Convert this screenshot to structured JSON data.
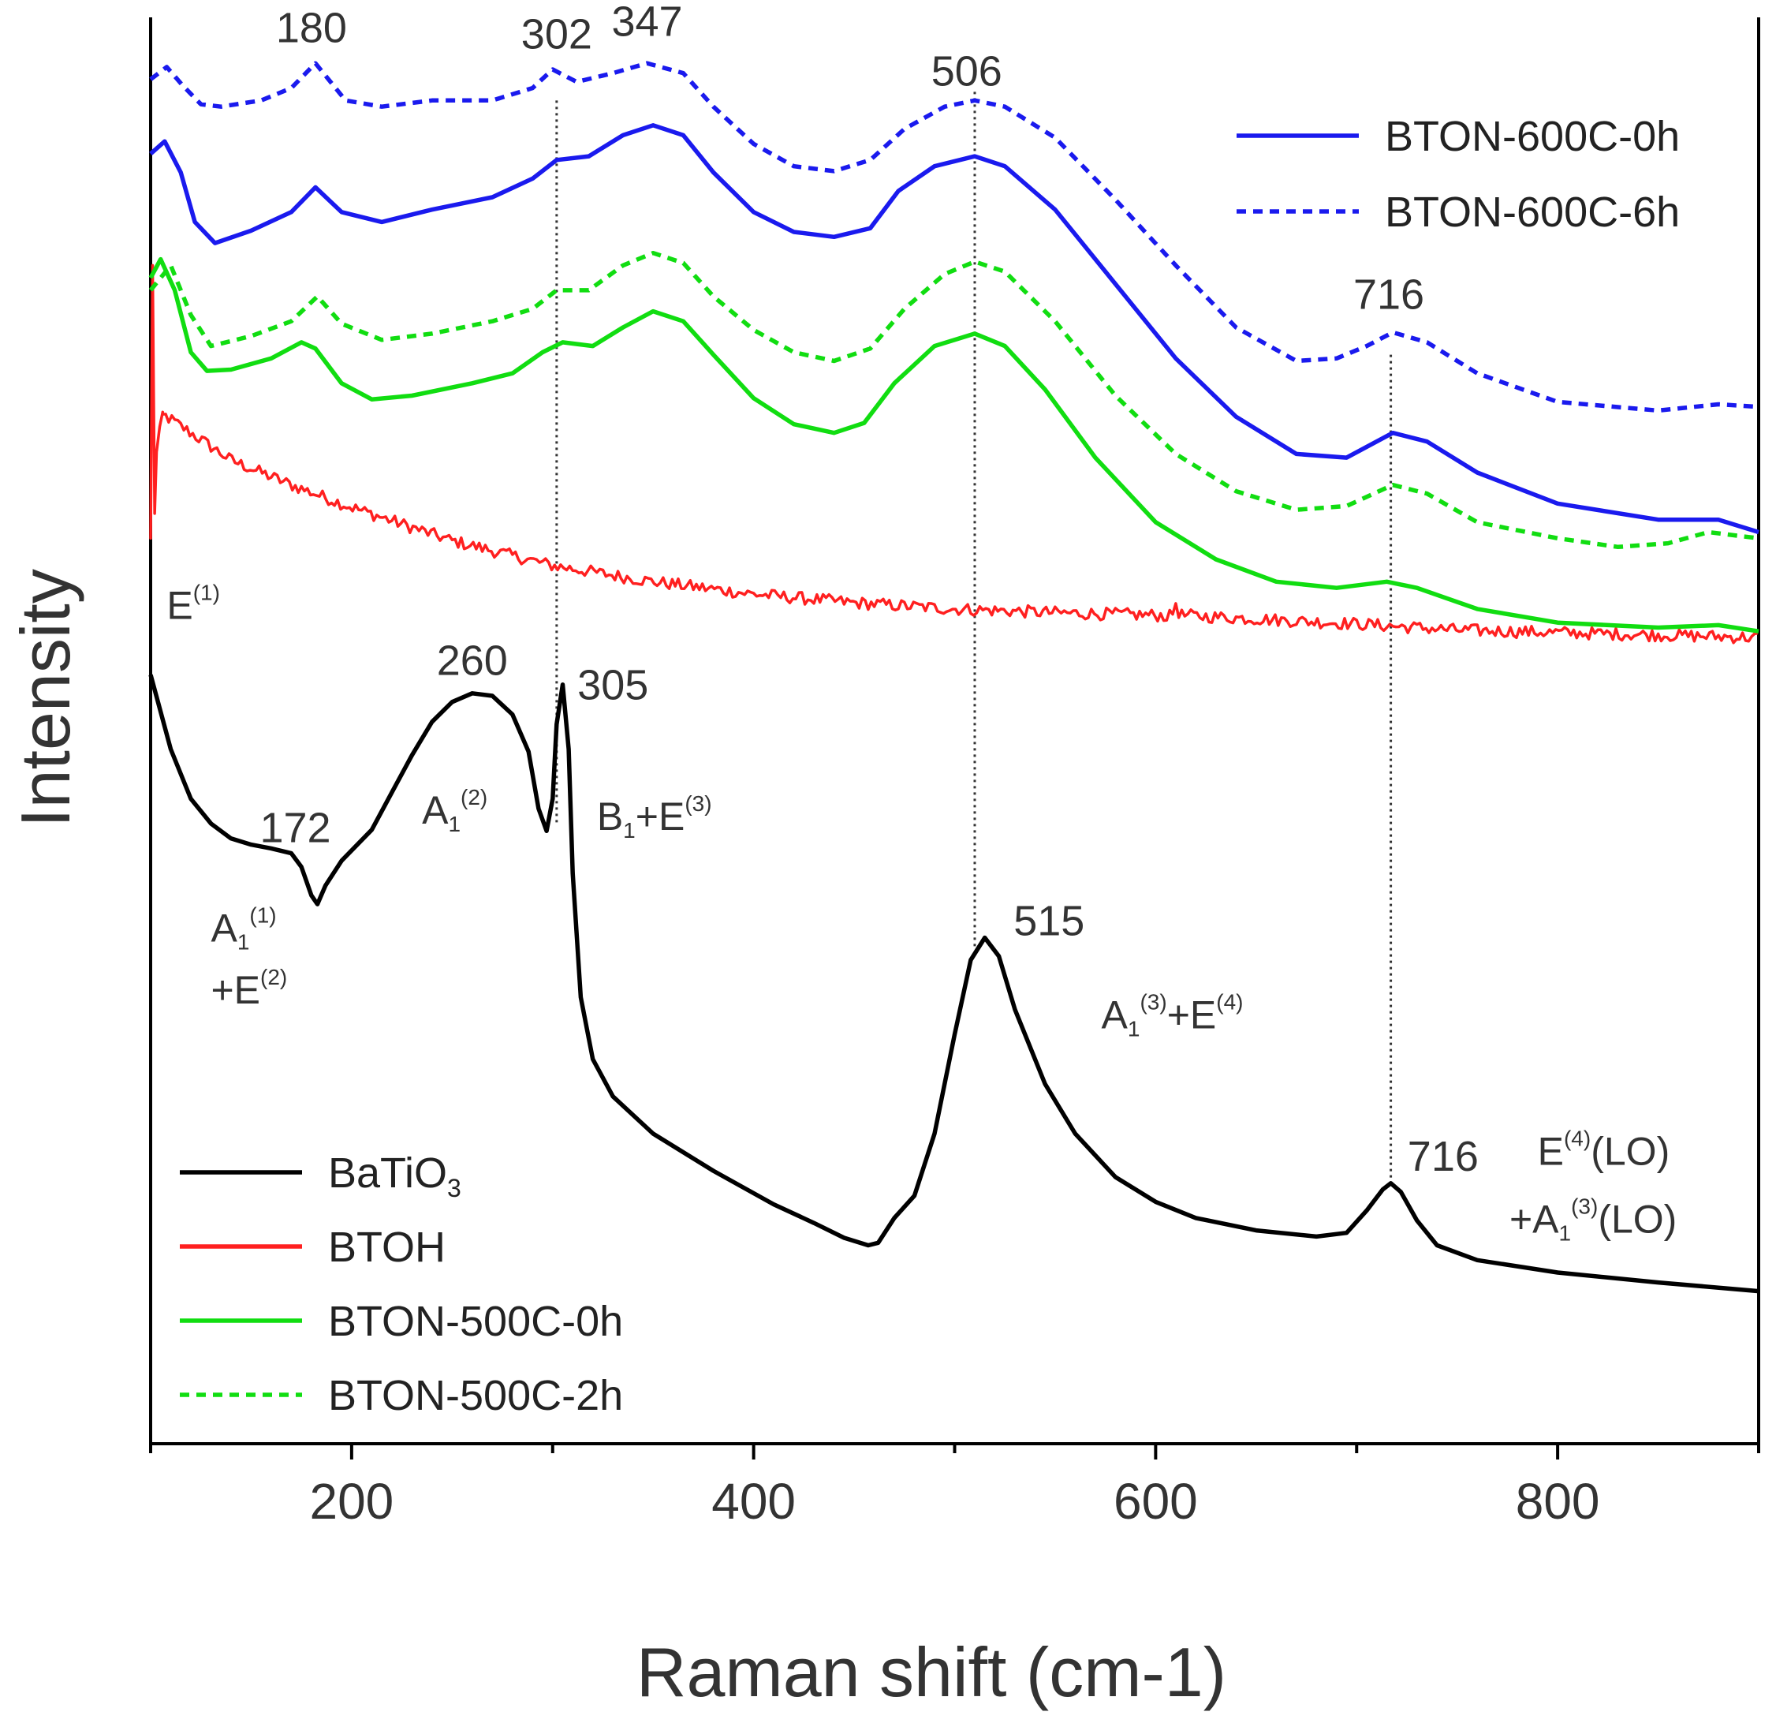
{
  "chart_data": {
    "type": "line",
    "xlabel": "Raman shift (cm-1)",
    "ylabel": "Intensity",
    "xlim": [
      100,
      900
    ],
    "ylim": [
      0,
      115
    ],
    "xticks": [
      200,
      400,
      600,
      800
    ],
    "grid": false,
    "legends": [
      {
        "placement": "top-right",
        "entries": [
          "BTON-600C-0h",
          "BTON-600C-6h"
        ]
      },
      {
        "placement": "bottom-left",
        "entries": [
          "BaTiO3",
          "BTOH",
          "BTON-500C-0h",
          "BTON-500C-2h"
        ]
      }
    ],
    "series": [
      {
        "name": "BaTiO3",
        "color": "#000000",
        "dash": "solid",
        "points": [
          [
            100,
            62
          ],
          [
            110,
            56
          ],
          [
            120,
            52
          ],
          [
            130,
            50
          ],
          [
            140,
            48.8
          ],
          [
            150,
            48.3
          ],
          [
            160,
            48.0
          ],
          [
            170,
            47.6
          ],
          [
            175,
            46.5
          ],
          [
            180,
            44.2
          ],
          [
            183,
            43.5
          ],
          [
            187,
            45
          ],
          [
            195,
            47
          ],
          [
            210,
            49.5
          ],
          [
            220,
            52.5
          ],
          [
            230,
            55.5
          ],
          [
            240,
            58.2
          ],
          [
            250,
            59.8
          ],
          [
            260,
            60.5
          ],
          [
            270,
            60.3
          ],
          [
            280,
            58.8
          ],
          [
            288,
            55.8
          ],
          [
            293,
            51.2
          ],
          [
            297,
            49.4
          ],
          [
            300,
            52
          ],
          [
            302,
            58
          ],
          [
            305,
            61.2
          ],
          [
            308,
            56
          ],
          [
            310,
            46
          ],
          [
            314,
            36
          ],
          [
            320,
            31
          ],
          [
            330,
            28
          ],
          [
            350,
            25
          ],
          [
            380,
            22
          ],
          [
            410,
            19.3
          ],
          [
            430,
            17.8
          ],
          [
            445,
            16.6
          ],
          [
            457,
            16.0
          ],
          [
            462,
            16.2
          ],
          [
            470,
            18.2
          ],
          [
            480,
            20
          ],
          [
            490,
            25
          ],
          [
            500,
            33
          ],
          [
            508,
            39
          ],
          [
            515,
            40.8
          ],
          [
            522,
            39.3
          ],
          [
            530,
            35
          ],
          [
            545,
            29
          ],
          [
            560,
            25
          ],
          [
            580,
            21.5
          ],
          [
            600,
            19.5
          ],
          [
            620,
            18.2
          ],
          [
            650,
            17.2
          ],
          [
            680,
            16.7
          ],
          [
            695,
            17.0
          ],
          [
            705,
            18.8
          ],
          [
            713,
            20.5
          ],
          [
            717,
            21.0
          ],
          [
            722,
            20.3
          ],
          [
            730,
            18.0
          ],
          [
            740,
            16.0
          ],
          [
            760,
            14.8
          ],
          [
            800,
            13.8
          ],
          [
            850,
            13.0
          ],
          [
            900,
            12.3
          ]
        ]
      },
      {
        "name": "BTOH",
        "color": "#ff2020",
        "dash": "solid",
        "noise": 0.5,
        "points": [
          [
            100,
            73
          ],
          [
            101,
            95
          ],
          [
            102,
            75
          ],
          [
            103,
            80
          ],
          [
            106,
            83
          ],
          [
            120,
            81.5
          ],
          [
            140,
            79.3
          ],
          [
            170,
            77.3
          ],
          [
            200,
            75.5
          ],
          [
            250,
            72.8
          ],
          [
            300,
            70.8
          ],
          [
            350,
            69.5
          ],
          [
            400,
            68.5
          ],
          [
            450,
            67.8
          ],
          [
            500,
            67.3
          ],
          [
            550,
            67.0
          ],
          [
            600,
            66.8
          ],
          [
            608,
            66.7
          ],
          [
            610,
            67.8
          ],
          [
            612,
            66.8
          ],
          [
            650,
            66.5
          ],
          [
            700,
            66.1
          ],
          [
            750,
            65.6
          ],
          [
            800,
            65.4
          ],
          [
            850,
            65.2
          ],
          [
            900,
            65.0
          ]
        ]
      },
      {
        "name": "BTON-500C-0h",
        "color": "#11dd11",
        "dash": "solid",
        "points": [
          [
            100,
            94
          ],
          [
            105,
            95.5
          ],
          [
            112,
            93
          ],
          [
            120,
            88
          ],
          [
            128,
            86.5
          ],
          [
            140,
            86.6
          ],
          [
            160,
            87.5
          ],
          [
            175,
            88.8
          ],
          [
            182,
            88.3
          ],
          [
            195,
            85.5
          ],
          [
            210,
            84.2
          ],
          [
            230,
            84.5
          ],
          [
            260,
            85.5
          ],
          [
            280,
            86.3
          ],
          [
            295,
            88.0
          ],
          [
            305,
            88.8
          ],
          [
            320,
            88.5
          ],
          [
            335,
            90.0
          ],
          [
            350,
            91.3
          ],
          [
            365,
            90.5
          ],
          [
            380,
            87.8
          ],
          [
            400,
            84.3
          ],
          [
            420,
            82.2
          ],
          [
            440,
            81.5
          ],
          [
            455,
            82.3
          ],
          [
            470,
            85.5
          ],
          [
            490,
            88.5
          ],
          [
            510,
            89.5
          ],
          [
            525,
            88.5
          ],
          [
            545,
            85.0
          ],
          [
            570,
            79.5
          ],
          [
            600,
            74.3
          ],
          [
            630,
            71.3
          ],
          [
            660,
            69.5
          ],
          [
            690,
            69.0
          ],
          [
            715,
            69.5
          ],
          [
            730,
            69.0
          ],
          [
            760,
            67.3
          ],
          [
            800,
            66.2
          ],
          [
            850,
            65.8
          ],
          [
            880,
            66.0
          ],
          [
            900,
            65.5
          ]
        ]
      },
      {
        "name": "BTON-500C-2h",
        "color": "#11dd11",
        "dash": "dashed",
        "points": [
          [
            100,
            93
          ],
          [
            110,
            95
          ],
          [
            120,
            91
          ],
          [
            130,
            88.5
          ],
          [
            150,
            89.3
          ],
          [
            170,
            90.5
          ],
          [
            183,
            92.5
          ],
          [
            195,
            90.3
          ],
          [
            215,
            89.0
          ],
          [
            240,
            89.5
          ],
          [
            270,
            90.5
          ],
          [
            290,
            91.5
          ],
          [
            302,
            93.0
          ],
          [
            318,
            93.0
          ],
          [
            335,
            95.0
          ],
          [
            350,
            96.0
          ],
          [
            365,
            95.2
          ],
          [
            380,
            92.5
          ],
          [
            400,
            89.8
          ],
          [
            420,
            88.0
          ],
          [
            440,
            87.3
          ],
          [
            458,
            88.3
          ],
          [
            475,
            91.5
          ],
          [
            495,
            94.3
          ],
          [
            510,
            95.3
          ],
          [
            525,
            94.5
          ],
          [
            550,
            90.5
          ],
          [
            580,
            84.5
          ],
          [
            610,
            79.8
          ],
          [
            640,
            76.8
          ],
          [
            670,
            75.3
          ],
          [
            695,
            75.6
          ],
          [
            718,
            77.3
          ],
          [
            735,
            76.6
          ],
          [
            760,
            74.3
          ],
          [
            800,
            73.0
          ],
          [
            830,
            72.3
          ],
          [
            855,
            72.6
          ],
          [
            875,
            73.5
          ],
          [
            900,
            73.0
          ]
        ]
      },
      {
        "name": "BTON-600C-0h",
        "color": "#1a1aee",
        "dash": "solid",
        "points": [
          [
            100,
            104
          ],
          [
            107,
            105
          ],
          [
            115,
            102.5
          ],
          [
            122,
            98.5
          ],
          [
            132,
            96.8
          ],
          [
            150,
            97.8
          ],
          [
            170,
            99.3
          ],
          [
            182,
            101.3
          ],
          [
            195,
            99.3
          ],
          [
            215,
            98.5
          ],
          [
            240,
            99.5
          ],
          [
            270,
            100.5
          ],
          [
            290,
            102.0
          ],
          [
            302,
            103.5
          ],
          [
            318,
            103.8
          ],
          [
            335,
            105.5
          ],
          [
            350,
            106.3
          ],
          [
            365,
            105.5
          ],
          [
            380,
            102.5
          ],
          [
            400,
            99.3
          ],
          [
            420,
            97.7
          ],
          [
            440,
            97.3
          ],
          [
            458,
            98.0
          ],
          [
            472,
            101.0
          ],
          [
            490,
            103.0
          ],
          [
            510,
            103.8
          ],
          [
            525,
            103.0
          ],
          [
            550,
            99.5
          ],
          [
            580,
            93.5
          ],
          [
            610,
            87.5
          ],
          [
            640,
            82.8
          ],
          [
            670,
            79.8
          ],
          [
            695,
            79.5
          ],
          [
            718,
            81.5
          ],
          [
            735,
            80.8
          ],
          [
            760,
            78.3
          ],
          [
            800,
            75.8
          ],
          [
            850,
            74.5
          ],
          [
            880,
            74.5
          ],
          [
            900,
            73.5
          ]
        ]
      },
      {
        "name": "BTON-600C-6h",
        "color": "#1a1aee",
        "dash": "dashed",
        "points": [
          [
            100,
            110
          ],
          [
            108,
            111
          ],
          [
            116,
            109.5
          ],
          [
            125,
            108
          ],
          [
            135,
            107.8
          ],
          [
            155,
            108.3
          ],
          [
            170,
            109.3
          ],
          [
            182,
            111.3
          ],
          [
            197,
            108.3
          ],
          [
            215,
            107.8
          ],
          [
            240,
            108.3
          ],
          [
            270,
            108.3
          ],
          [
            290,
            109.3
          ],
          [
            300,
            110.8
          ],
          [
            312,
            109.8
          ],
          [
            330,
            110.5
          ],
          [
            347,
            111.3
          ],
          [
            365,
            110.5
          ],
          [
            380,
            107.8
          ],
          [
            400,
            104.8
          ],
          [
            420,
            103.0
          ],
          [
            440,
            102.6
          ],
          [
            458,
            103.5
          ],
          [
            475,
            106.0
          ],
          [
            495,
            107.8
          ],
          [
            510,
            108.3
          ],
          [
            525,
            107.8
          ],
          [
            550,
            105.3
          ],
          [
            580,
            100.3
          ],
          [
            610,
            95.0
          ],
          [
            640,
            90.0
          ],
          [
            670,
            87.3
          ],
          [
            690,
            87.5
          ],
          [
            705,
            88.5
          ],
          [
            718,
            89.6
          ],
          [
            735,
            88.8
          ],
          [
            760,
            86.3
          ],
          [
            800,
            84.0
          ],
          [
            850,
            83.3
          ],
          [
            880,
            83.8
          ],
          [
            900,
            83.6
          ]
        ]
      }
    ],
    "peak_labels": [
      {
        "text": "180",
        "x": 180,
        "y": 113
      },
      {
        "text": "302",
        "x": 302,
        "y": 112.5
      },
      {
        "text": "347",
        "x": 347,
        "y": 113.5
      },
      {
        "text": "506",
        "x": 506,
        "y": 109.5
      },
      {
        "text": "716",
        "x": 716,
        "y": 91.5
      },
      {
        "text": "260",
        "x": 260,
        "y": 62
      },
      {
        "text": "172",
        "x": 172,
        "y": 48.5
      },
      {
        "text": "305",
        "x": 330,
        "y": 60
      },
      {
        "text": "515",
        "x": 547,
        "y": 41
      },
      {
        "text": "716",
        "x": 743,
        "y": 22
      }
    ],
    "mode_labels": [
      {
        "base": "E",
        "sub": "",
        "sup": "(1)",
        "tail": "",
        "x": 108,
        "y": 66.5
      },
      {
        "base": "A",
        "sub": "1",
        "sup": "(1)",
        "tail": "",
        "x": 130,
        "y": 40.5
      },
      {
        "base": "+E",
        "sub": "",
        "sup": "(2)",
        "tail": "",
        "x": 130,
        "y": 35.5
      },
      {
        "base": "A",
        "sub": "1",
        "sup": "(2)",
        "tail": "",
        "x": 235,
        "y": 50
      },
      {
        "base": "B",
        "sub": "1",
        "sup": "",
        "tail": "+E",
        "tail_sup": "(3)",
        "x": 322,
        "y": 49.5
      },
      {
        "base": "A",
        "sub": "1",
        "sup": "(3)",
        "tail": "+E",
        "tail_sup": "(4)",
        "x": 573,
        "y": 33.5
      },
      {
        "base": "E",
        "sub": "",
        "sup": "(4)",
        "tail": "(LO)",
        "x": 790,
        "y": 22.5
      },
      {
        "base": "+A",
        "sub": "1",
        "sup": "(3)",
        "tail": "(LO)",
        "x": 776,
        "y": 17
      }
    ],
    "guide_lines": [
      {
        "x": 302,
        "y_top": 108.3,
        "y_bottom": 50
      },
      {
        "x": 510,
        "y_top": 109.0,
        "y_bottom": 40
      },
      {
        "x": 717,
        "y_top": 87.8,
        "y_bottom": 21
      }
    ]
  }
}
